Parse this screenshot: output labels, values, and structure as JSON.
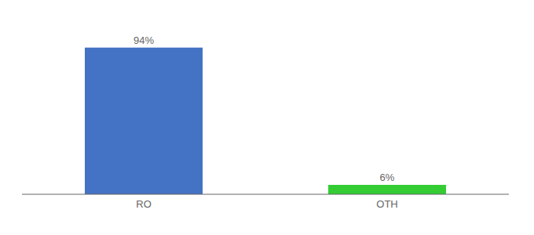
{
  "chart_data": {
    "type": "bar",
    "categories": [
      "RO",
      "OTH"
    ],
    "values": [
      94,
      6
    ],
    "value_labels": [
      "94%",
      "6%"
    ],
    "data_labels": true,
    "colors": [
      "#4472c4",
      "#33cc33"
    ],
    "ylim": [
      0,
      108
    ],
    "tick_labels": "x",
    "grid": false
  }
}
